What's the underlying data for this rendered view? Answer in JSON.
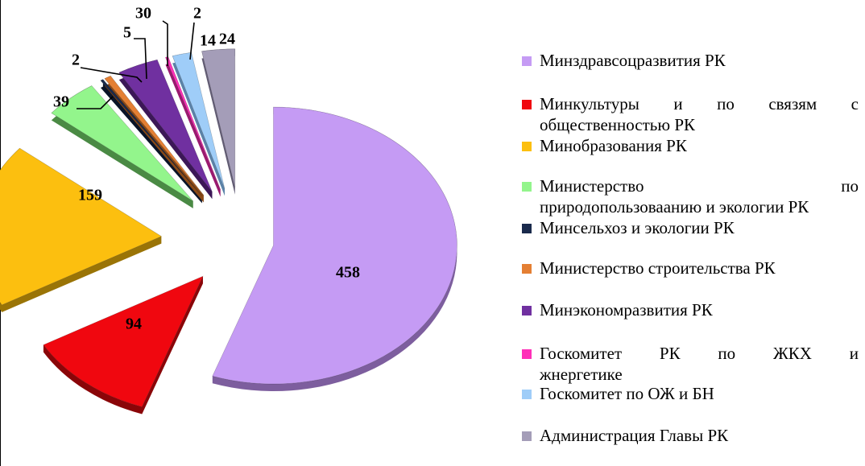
{
  "chart_data": {
    "type": "pie",
    "exploded": true,
    "three_d": true,
    "data_labels": true,
    "legend_position": "right",
    "slices": [
      {
        "label": "Минздравсоцразвития РК",
        "value": 458,
        "color": "#c59bf4",
        "side": "#7d5e9e"
      },
      {
        "label": "Минкультуры и по связям с общественностью РК",
        "value": 94,
        "color": "#f0070f",
        "side": "#8a0508"
      },
      {
        "label": "Минобразования РК",
        "value": 159,
        "color": "#fcbf0f",
        "side": "#9a7406"
      },
      {
        "label": "Министерство по природопользоваанию и экологии РК",
        "value": 39,
        "color": "#93f58c",
        "side": "#4a8a44"
      },
      {
        "label": "Минсельхоз и экологии РК",
        "value": 2,
        "color": "#1a2a4c",
        "side": "#0a1428"
      },
      {
        "label": "Министерство строительства РК",
        "value": 5,
        "color": "#e47f33",
        "side": "#8a4a17"
      },
      {
        "label": "Минэкономразвития РК",
        "value": 30,
        "color": "#7030a0",
        "side": "#3c1757"
      },
      {
        "label": "Госкомитет РК по ЖКХ и жнергетике",
        "value": 2,
        "color": "#ff2fb8",
        "side": "#9a1a6f"
      },
      {
        "label": "Госкомитет по ОЖ и БН",
        "value": 14,
        "color": "#9fcdf8",
        "side": "#5b82a8"
      },
      {
        "label": "Администрация Главы РК",
        "value": 24,
        "color": "#a49db8",
        "side": "#625c74"
      }
    ]
  },
  "legend": [
    {
      "line1": "Минздравсоцразвития РК",
      "line2": ""
    },
    {
      "line1": "Минкультуры и по связям с",
      "line2": "общественностью РК"
    },
    {
      "line1": "Минобразования РК",
      "line2": ""
    },
    {
      "line1": "Министерство по",
      "line2": "природопользоваанию и экологии РК"
    },
    {
      "line1": "Минсельхоз и экологии РК",
      "line2": ""
    },
    {
      "line1": "Министерство строительства РК",
      "line2": ""
    },
    {
      "line1": "Минэкономразвития РК",
      "line2": ""
    },
    {
      "line1": "Госкомитет РК по ЖКХ и",
      "line2": "жнергетике"
    },
    {
      "line1": "Госкомитет по ОЖ и БН",
      "line2": ""
    },
    {
      "line1": "Администрация Главы РК",
      "line2": ""
    }
  ]
}
